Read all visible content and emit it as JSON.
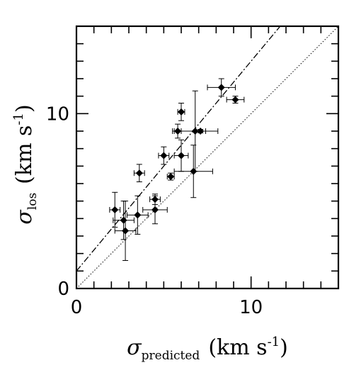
{
  "chart_data": {
    "type": "scatter",
    "title": "",
    "xlabel": {
      "symbol": "σ",
      "subscript": "predicted",
      "units_open": "(km  s",
      "units_exp": "-1",
      "units_close": ")"
    },
    "ylabel": {
      "symbol": "σ",
      "subscript": "los",
      "units_open": "(km  s",
      "units_exp": "-1",
      "units_close": ")"
    },
    "xlim": [
      0,
      15
    ],
    "ylim": [
      0,
      15
    ],
    "x_ticks": [
      {
        "value": 0,
        "label": "0"
      },
      {
        "value": 10,
        "label": "10"
      }
    ],
    "y_ticks": [
      {
        "value": 0,
        "label": "0"
      },
      {
        "value": 10,
        "label": "10"
      }
    ],
    "minor_tick_step": 1,
    "grid": false,
    "points": [
      {
        "x": 2.2,
        "y": 4.5,
        "xerr": 0.3,
        "yerr": 1.0
      },
      {
        "x": 2.8,
        "y": 3.3,
        "xerr": 0.6,
        "yerr": 1.7
      },
      {
        "x": 2.7,
        "y": 3.9,
        "xerr": 0.6,
        "yerr": 1.1
      },
      {
        "x": 3.5,
        "y": 4.2,
        "xerr": 0.6,
        "yerr": 1.1
      },
      {
        "x": 3.6,
        "y": 6.6,
        "xerr": 0.3,
        "yerr": 0.5
      },
      {
        "x": 4.5,
        "y": 5.1,
        "xerr": 0.3,
        "yerr": 0.3
      },
      {
        "x": 4.5,
        "y": 4.5,
        "xerr": 0.7,
        "yerr": 0.8
      },
      {
        "x": 5.0,
        "y": 7.6,
        "xerr": 0.3,
        "yerr": 0.5
      },
      {
        "x": 5.4,
        "y": 6.4,
        "xerr": 0.2,
        "yerr": 0.2
      },
      {
        "x": 5.8,
        "y": 9.0,
        "xerr": 0.2,
        "yerr": 0.4
      },
      {
        "x": 6.0,
        "y": 10.1,
        "xerr": 0.2,
        "yerr": 0.5
      },
      {
        "x": 6.0,
        "y": 7.6,
        "xerr": 0.4,
        "yerr": 0.9
      },
      {
        "x": 6.7,
        "y": 6.7,
        "xerr": 1.1,
        "yerr": 1.5
      },
      {
        "x": 6.8,
        "y": 9.0,
        "xerr": 1.3,
        "yerr": 2.3
      },
      {
        "x": 7.1,
        "y": 9.0,
        "xerr": 0.3,
        "yerr": 0.1
      },
      {
        "x": 8.3,
        "y": 11.5,
        "xerr": 0.8,
        "yerr": 0.5
      },
      {
        "x": 9.1,
        "y": 10.8,
        "xerr": 0.5,
        "yerr": 0.2
      }
    ],
    "lines": [
      {
        "kind": "fit",
        "style": "dashed",
        "intercept": 1.0,
        "slope": 1.2
      },
      {
        "kind": "one-to-one",
        "style": "dotted",
        "intercept": 0,
        "slope": 1
      }
    ]
  }
}
